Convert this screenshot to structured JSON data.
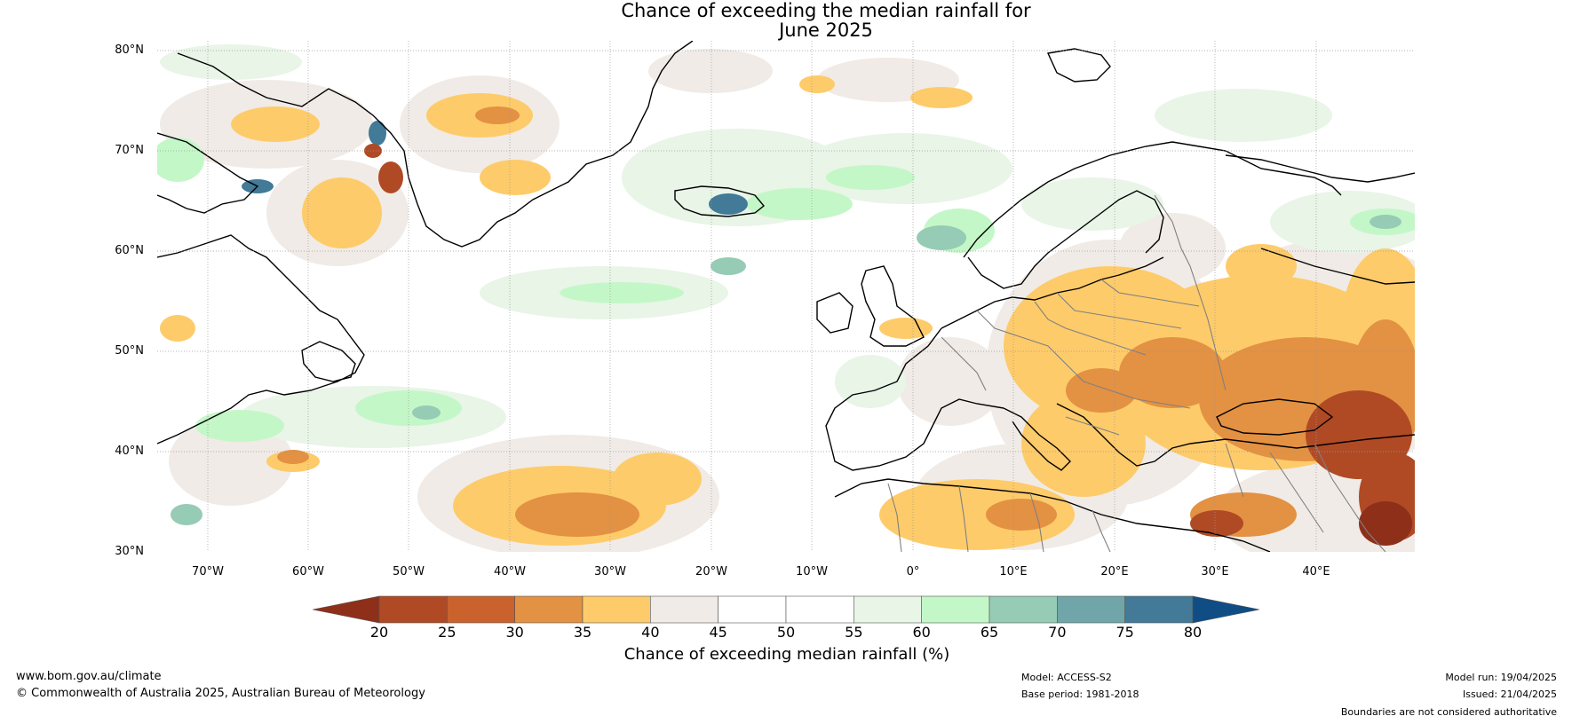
{
  "title": {
    "line1": "Chance of exceeding the median rainfall for",
    "line2": "June 2025"
  },
  "map": {
    "lat_labels": [
      "80°N",
      "70°N",
      "60°N",
      "50°N",
      "40°N",
      "30°N"
    ],
    "lon_labels": [
      "70°W",
      "60°W",
      "50°W",
      "40°W",
      "30°W",
      "20°W",
      "10°W",
      "0°",
      "10°E",
      "20°E",
      "30°E",
      "40°E"
    ],
    "colors": {
      "coastline": "#000000",
      "borders": "#808080",
      "grid": "#9a9a9a"
    }
  },
  "colorbar": {
    "ticks": [
      "20",
      "25",
      "30",
      "35",
      "40",
      "45",
      "50",
      "55",
      "60",
      "65",
      "70",
      "75",
      "80"
    ],
    "label": "Chance of exceeding median rainfall (%)",
    "colors": [
      "#8e2f1a",
      "#b04a25",
      "#c9622d",
      "#e39142",
      "#fecb6a",
      "#f0ebe6",
      "#ffffff",
      "#ffffff",
      "#e8f5e7",
      "#c4f7c8",
      "#96cbb5",
      "#70a6a9",
      "#427a98",
      "#104d85"
    ]
  },
  "footer": {
    "website": "www.bom.gov.au/climate",
    "copyright": "© Commonwealth of Australia 2025, Australian Bureau of Meteorology",
    "model": "Model: ACCESS-S2",
    "base_period": "Base period: 1981-2018",
    "model_run": "Model run: 19/04/2025",
    "issued": "Issued: 21/04/2025",
    "disclaimer": "Boundaries are not considered authoritative"
  }
}
